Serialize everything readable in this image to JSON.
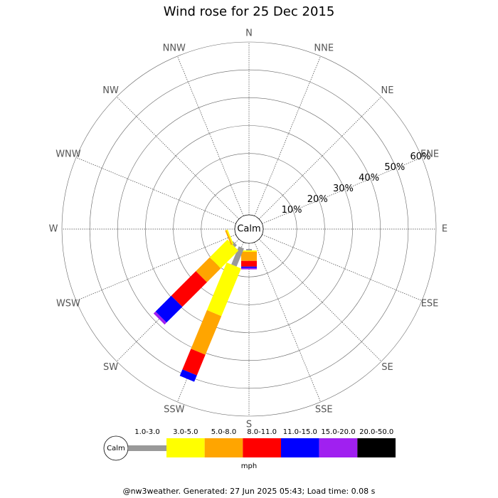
{
  "chart_data": {
    "type": "wind-rose",
    "title": "Wind rose for 25 Dec 2015",
    "directions": [
      "N",
      "NNE",
      "NE",
      "ENE",
      "E",
      "ESE",
      "SE",
      "SSE",
      "S",
      "SSW",
      "SW",
      "WSW",
      "W",
      "WNW",
      "NW",
      "NNW"
    ],
    "series": [
      {
        "name": "1.0-3.0",
        "color": "#999999",
        "values": [
          0,
          0,
          0,
          0,
          0,
          0,
          0,
          0,
          0.5,
          7,
          1,
          0,
          0,
          0,
          0,
          0
        ]
      },
      {
        "name": "3.0-5.0",
        "color": "#ffff00",
        "values": [
          0,
          0,
          0,
          0,
          0,
          0,
          0,
          0,
          0.5,
          18.5,
          9,
          0.5,
          0,
          0,
          0,
          0
        ]
      },
      {
        "name": "5.0-8.0",
        "color": "#ffa500",
        "values": [
          0,
          0,
          0,
          0,
          0,
          0,
          0,
          0,
          3.3,
          15,
          7,
          0.5,
          0,
          0,
          0,
          0
        ]
      },
      {
        "name": "8.0-11.0",
        "color": "#ff0000",
        "values": [
          0,
          0,
          0,
          0,
          0,
          0,
          0,
          0,
          2,
          8,
          12.5,
          0,
          0,
          0,
          0,
          0
        ]
      },
      {
        "name": "11.0-15.0",
        "color": "#0000ff",
        "values": [
          0,
          0,
          0,
          0,
          0,
          0,
          0,
          0,
          0.5,
          2.5,
          8,
          0,
          0,
          0,
          0,
          0
        ]
      },
      {
        "name": "15.0-20.0",
        "color": "#a020f0",
        "values": [
          0,
          0,
          0,
          0,
          0,
          0,
          0,
          0,
          0.5,
          0,
          1,
          0,
          0,
          0,
          0,
          0
        ]
      },
      {
        "name": "20.0-50.0",
        "color": "#000000",
        "values": [
          0,
          0,
          0,
          0,
          0,
          0,
          0,
          0,
          0,
          0,
          0,
          0,
          0,
          0,
          0,
          0
        ]
      }
    ],
    "rlim": [
      0,
      60
    ],
    "rticks": [
      {
        "value": 10,
        "label": "10%"
      },
      {
        "value": 20,
        "label": "20%"
      },
      {
        "value": 30,
        "label": "30%"
      },
      {
        "value": 40,
        "label": "40%"
      },
      {
        "value": 50,
        "label": "50%"
      },
      {
        "value": 60,
        "label": "60%"
      }
    ],
    "calm_label": "Calm",
    "unit_label": "mph",
    "footer": "@nw3weather. Generated: 27 Jun 2025 05:43; Load time: 0.08 s"
  }
}
